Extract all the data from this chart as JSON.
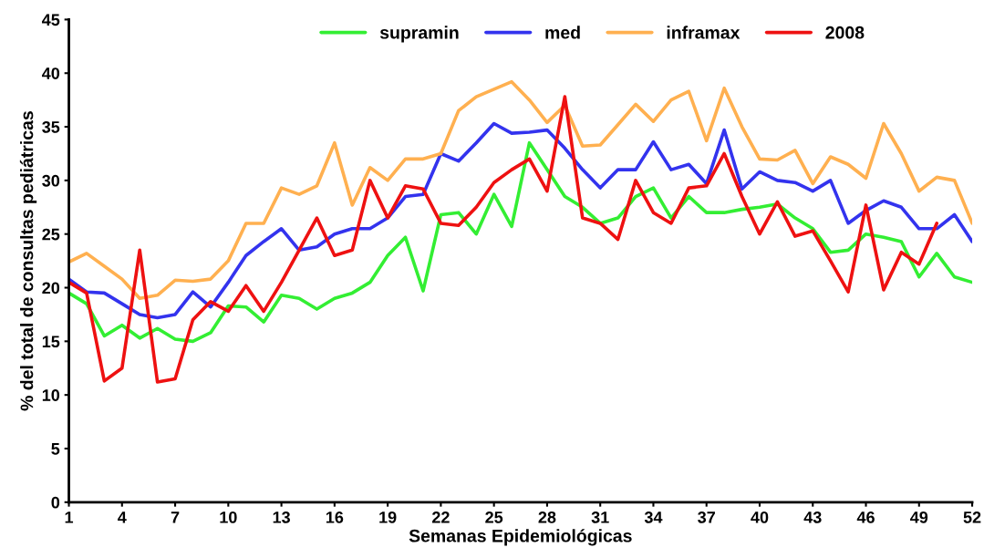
{
  "chart_data": {
    "type": "line",
    "xlabel": "Semanas Epidemiológicas",
    "ylabel": "% del total de consultas pediátricas",
    "x": [
      1,
      2,
      3,
      4,
      5,
      6,
      7,
      8,
      9,
      10,
      11,
      12,
      13,
      14,
      15,
      16,
      17,
      18,
      19,
      20,
      21,
      22,
      23,
      24,
      25,
      26,
      27,
      28,
      29,
      30,
      31,
      32,
      33,
      34,
      35,
      36,
      37,
      38,
      39,
      40,
      41,
      42,
      43,
      44,
      45,
      46,
      47,
      48,
      49,
      50,
      51,
      52
    ],
    "series": [
      {
        "name": "supramin",
        "color": "#33ee33",
        "values": [
          19.5,
          18.5,
          15.5,
          16.5,
          15.3,
          16.2,
          15.2,
          15,
          15.8,
          18.3,
          18.2,
          16.8,
          19.3,
          19,
          18,
          19,
          19.5,
          20.5,
          23,
          24.7,
          19.7,
          26.8,
          27,
          25,
          28.7,
          25.7,
          33.5,
          31,
          28.5,
          27.5,
          26,
          26.5,
          28.5,
          29.3,
          26.5,
          28.5,
          27,
          27,
          27.3,
          27.5,
          27.8,
          26.5,
          25.5,
          23.3,
          23.5,
          25,
          24.7,
          24.3,
          21,
          23.2,
          21,
          20.5
        ]
      },
      {
        "name": "med",
        "color": "#3333ee",
        "values": [
          20.8,
          19.6,
          19.5,
          18.5,
          17.5,
          17.2,
          17.5,
          19.6,
          18.2,
          20.5,
          23,
          24.3,
          25.5,
          23.5,
          23.8,
          25,
          25.5,
          25.5,
          26.5,
          28.5,
          28.7,
          32.5,
          31.8,
          33.5,
          35.3,
          34.4,
          34.5,
          34.7,
          33,
          31,
          29.3,
          31,
          31,
          33.6,
          31,
          31.5,
          29.7,
          34.7,
          29.2,
          30.8,
          30,
          29.8,
          29,
          30,
          26,
          27.2,
          28.1,
          27.5,
          25.5,
          25.5,
          26.8,
          24.3
        ]
      },
      {
        "name": "inframax",
        "color": "#ffb050",
        "values": [
          22.4,
          23.2,
          22,
          20.8,
          19,
          19.3,
          20.7,
          20.6,
          20.8,
          22.5,
          26,
          26,
          29.3,
          28.7,
          29.5,
          33.5,
          27.7,
          31.2,
          30,
          32,
          32,
          32.5,
          36.5,
          37.8,
          38.5,
          39.2,
          37.5,
          35.4,
          37,
          33.2,
          33.3,
          35.2,
          37.1,
          35.5,
          37.5,
          38.3,
          33.7,
          38.6,
          35,
          32,
          31.9,
          32.8,
          29.7,
          32.2,
          31.5,
          30.2,
          35.3,
          32.5,
          29,
          30.3,
          30,
          26
        ]
      },
      {
        "name": "2008",
        "color": "#ee1111",
        "values": [
          20.5,
          19.5,
          11.3,
          12.5,
          23.5,
          11.2,
          11.5,
          17,
          18.7,
          17.8,
          20.2,
          17.8,
          20.5,
          23.5,
          26.5,
          23,
          23.5,
          30,
          26.5,
          29.5,
          29.2,
          26,
          25.8,
          27.5,
          29.8,
          31,
          32,
          29,
          37.8,
          26.5,
          26,
          24.5,
          30,
          27,
          26,
          29.3,
          29.5,
          32.5,
          28.5,
          25,
          28,
          24.8,
          25.3,
          22.5,
          19.6,
          27.7,
          19.8,
          23.3,
          22.2,
          26,
          null,
          null
        ]
      }
    ],
    "xlim": [
      1,
      52
    ],
    "xticks": [
      1,
      4,
      7,
      10,
      13,
      16,
      19,
      22,
      25,
      28,
      31,
      34,
      37,
      40,
      43,
      46,
      49,
      52
    ],
    "ylim": [
      0,
      45
    ],
    "yticks": [
      0,
      5,
      10,
      15,
      20,
      25,
      30,
      35,
      40,
      45
    ],
    "grid": false,
    "legend": "top",
    "marker": "none",
    "line_style": "solid"
  }
}
